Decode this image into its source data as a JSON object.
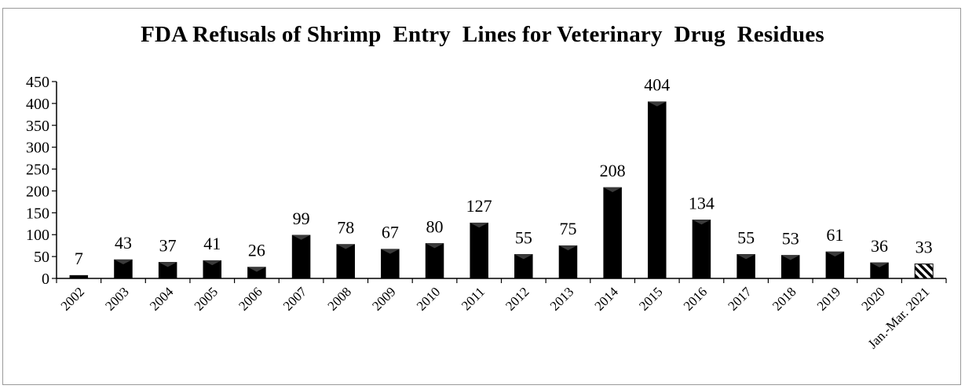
{
  "chart_data": {
    "type": "bar",
    "title": "FDA Refusals of Shrimp  Entry  Lines for Veterinary  Drug  Residues",
    "xlabel": "",
    "ylabel": "",
    "ylim": [
      0,
      450
    ],
    "yticks": [
      0,
      50,
      100,
      150,
      200,
      250,
      300,
      350,
      400,
      450
    ],
    "grid": false,
    "legend": "none",
    "categories": [
      "2002",
      "2003",
      "2004",
      "2005",
      "2006",
      "2007",
      "2008",
      "2009",
      "2010",
      "2011",
      "2012",
      "2013",
      "2014",
      "2015",
      "2016",
      "2017",
      "2018",
      "2019",
      "2020",
      "Jan.-Mar. 2021"
    ],
    "values": [
      7,
      43,
      37,
      41,
      26,
      99,
      78,
      67,
      80,
      127,
      55,
      75,
      208,
      404,
      134,
      55,
      53,
      61,
      36,
      33
    ],
    "bar_color": "#000000",
    "last_bar_pattern": "diagonal-hatch"
  }
}
